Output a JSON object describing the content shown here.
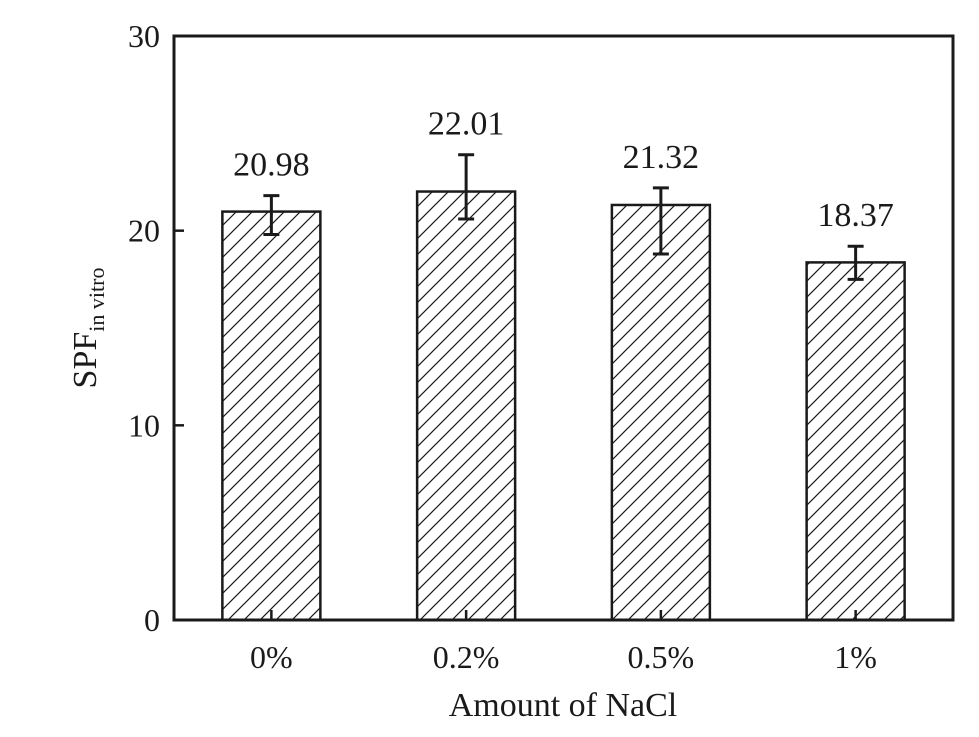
{
  "chart_data": {
    "type": "bar",
    "title": "",
    "xlabel": "Amount of NaCl",
    "ylabel": {
      "main": "SPF",
      "subscript": "in vitro"
    },
    "categories": [
      "0%",
      "0.2%",
      "0.5%",
      "1%"
    ],
    "values": [
      20.98,
      22.01,
      21.32,
      18.37
    ],
    "value_labels": [
      "20.98",
      "22.01",
      "21.32",
      "18.37"
    ],
    "error_bars": [
      {
        "low": 19.8,
        "high": 21.8
      },
      {
        "low": 20.6,
        "high": 23.9
      },
      {
        "low": 18.8,
        "high": 22.2
      },
      {
        "low": 17.5,
        "high": 19.2
      }
    ],
    "ylim": [
      0,
      30
    ],
    "yticks": [
      0,
      10,
      20,
      30
    ],
    "ytick_labels": [
      "0",
      "10",
      "20",
      "30"
    ],
    "grid": false,
    "bar_fill": "hatched",
    "colors": {
      "stroke": "#1a1a1a",
      "background": "#ffffff"
    }
  }
}
